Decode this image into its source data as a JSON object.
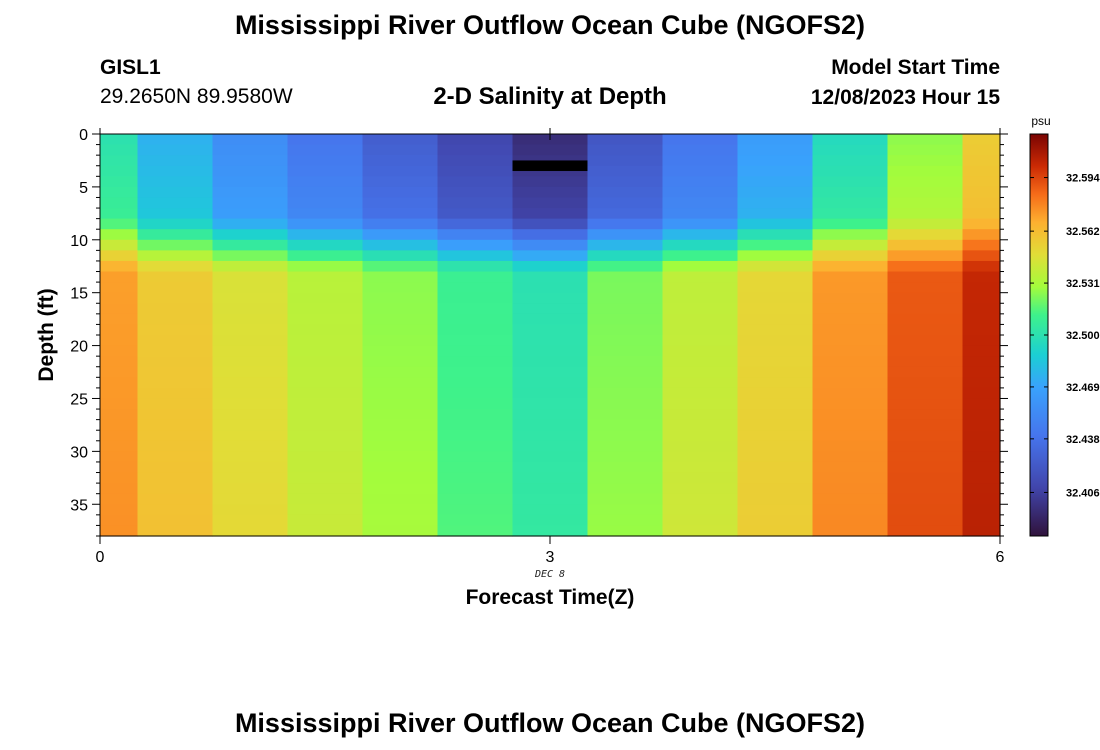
{
  "header": {
    "title": "Mississippi River Outflow Ocean Cube (NGOFS2)",
    "station_id": "GISL1",
    "station_coords": "29.2650N  89.9580W",
    "subtitle": "2-D Salinity at Depth",
    "model_label": "Model Start Time",
    "model_time": "12/08/2023 Hour 15"
  },
  "footer": {
    "title_repeat": "Mississippi River Outflow Ocean Cube (NGOFS2)"
  },
  "chart_data": {
    "type": "heatmap",
    "xlabel": "Forecast Time(Z)",
    "ylabel": "Depth (ft)",
    "x_date_label": "DEC 8",
    "x_range": [
      0,
      6
    ],
    "y_range": [
      0,
      38
    ],
    "y_inverted": true,
    "x_ticks": [
      "0",
      "3",
      "6"
    ],
    "y_ticks": [
      "0",
      "5",
      "10",
      "15",
      "20",
      "25",
      "30",
      "35"
    ],
    "colorbar": {
      "unit": "psu",
      "min": 32.38,
      "max": 32.62,
      "ticks": [
        "32.406",
        "32.438",
        "32.469",
        "32.500",
        "32.531",
        "32.562",
        "32.594"
      ]
    },
    "columns": [
      {
        "x0": 0.0,
        "x1": 0.25,
        "surface": 32.5,
        "deep": 32.575
      },
      {
        "x0": 0.25,
        "x1": 0.75,
        "surface": 32.475,
        "deep": 32.56
      },
      {
        "x0": 0.75,
        "x1": 1.25,
        "surface": 32.455,
        "deep": 32.55
      },
      {
        "x0": 1.25,
        "x1": 1.75,
        "surface": 32.44,
        "deep": 32.54
      },
      {
        "x0": 1.75,
        "x1": 2.25,
        "surface": 32.425,
        "deep": 32.53
      },
      {
        "x0": 2.25,
        "x1": 2.75,
        "surface": 32.41,
        "deep": 32.515
      },
      {
        "x0": 2.75,
        "x1": 3.25,
        "surface": 32.395,
        "deep": 32.505
      },
      {
        "x0": 3.25,
        "x1": 3.75,
        "surface": 32.42,
        "deep": 32.527
      },
      {
        "x0": 3.75,
        "x1": 4.25,
        "surface": 32.44,
        "deep": 32.542
      },
      {
        "x0": 4.25,
        "x1": 4.75,
        "surface": 32.465,
        "deep": 32.555
      },
      {
        "x0": 4.75,
        "x1": 5.25,
        "surface": 32.495,
        "deep": 32.577
      },
      {
        "x0": 5.25,
        "x1": 5.75,
        "surface": 32.525,
        "deep": 32.592
      },
      {
        "x0": 5.75,
        "x1": 6.0,
        "surface": 32.555,
        "deep": 32.605
      }
    ],
    "mixed_layer_depth_ft": 8,
    "thermocline_bottom_ft": 13,
    "marker": {
      "x0": 2.75,
      "x1": 3.25,
      "y0": 2.5,
      "y1": 3.5
    }
  }
}
